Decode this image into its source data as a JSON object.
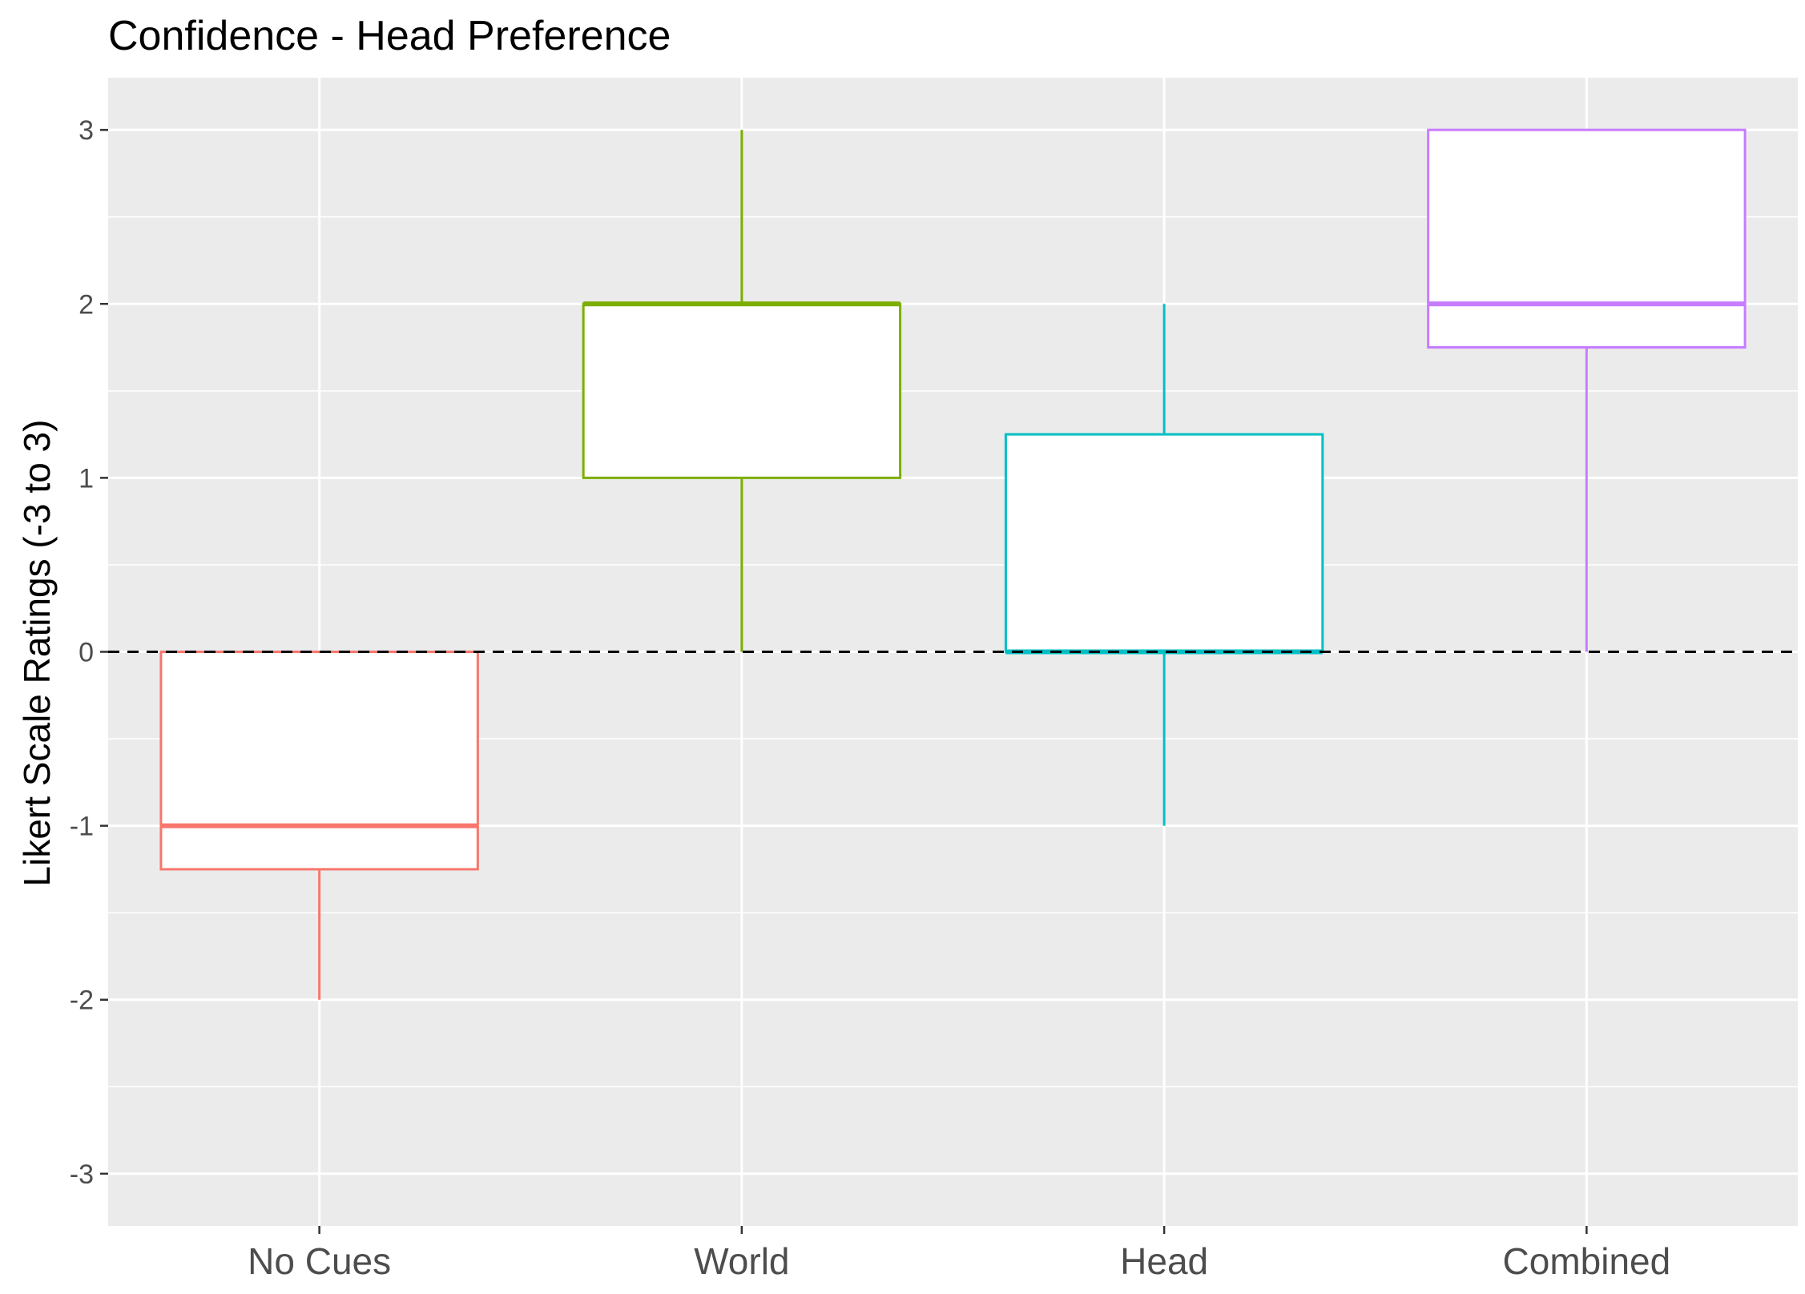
{
  "chart_data": {
    "type": "box",
    "title": "Confidence - Head Preference",
    "xlabel": "",
    "ylabel": "Likert Scale Ratings (-3 to 3)",
    "ylim": [
      -3.3,
      3.3
    ],
    "yticks": [
      "-3",
      "-2",
      "-1",
      "0",
      "1",
      "2",
      "3"
    ],
    "yticks_values": [
      -3,
      -2,
      -1,
      0,
      1,
      2,
      3
    ],
    "grid": true,
    "reference_line": {
      "y": 0,
      "style": "dashed",
      "color": "#000000"
    },
    "categories": [
      "No Cues",
      "World",
      "Head",
      "Combined"
    ],
    "boxes": [
      {
        "category": "No Cues",
        "whisker_low": -2,
        "q1": -1.25,
        "median": -1,
        "q3": 0,
        "whisker_high": 0,
        "color": "#F8766D"
      },
      {
        "category": "World",
        "whisker_low": 0,
        "q1": 1,
        "median": 2,
        "q3": 2,
        "whisker_high": 3,
        "color": "#7CAE00"
      },
      {
        "category": "Head",
        "whisker_low": -1,
        "q1": 0,
        "median": 0,
        "q3": 1.25,
        "whisker_high": 2,
        "color": "#00BFC4"
      },
      {
        "category": "Combined",
        "whisker_low": 0,
        "q1": 1.75,
        "median": 2,
        "q3": 3,
        "whisker_high": 3,
        "color": "#C77CFF"
      }
    ]
  }
}
